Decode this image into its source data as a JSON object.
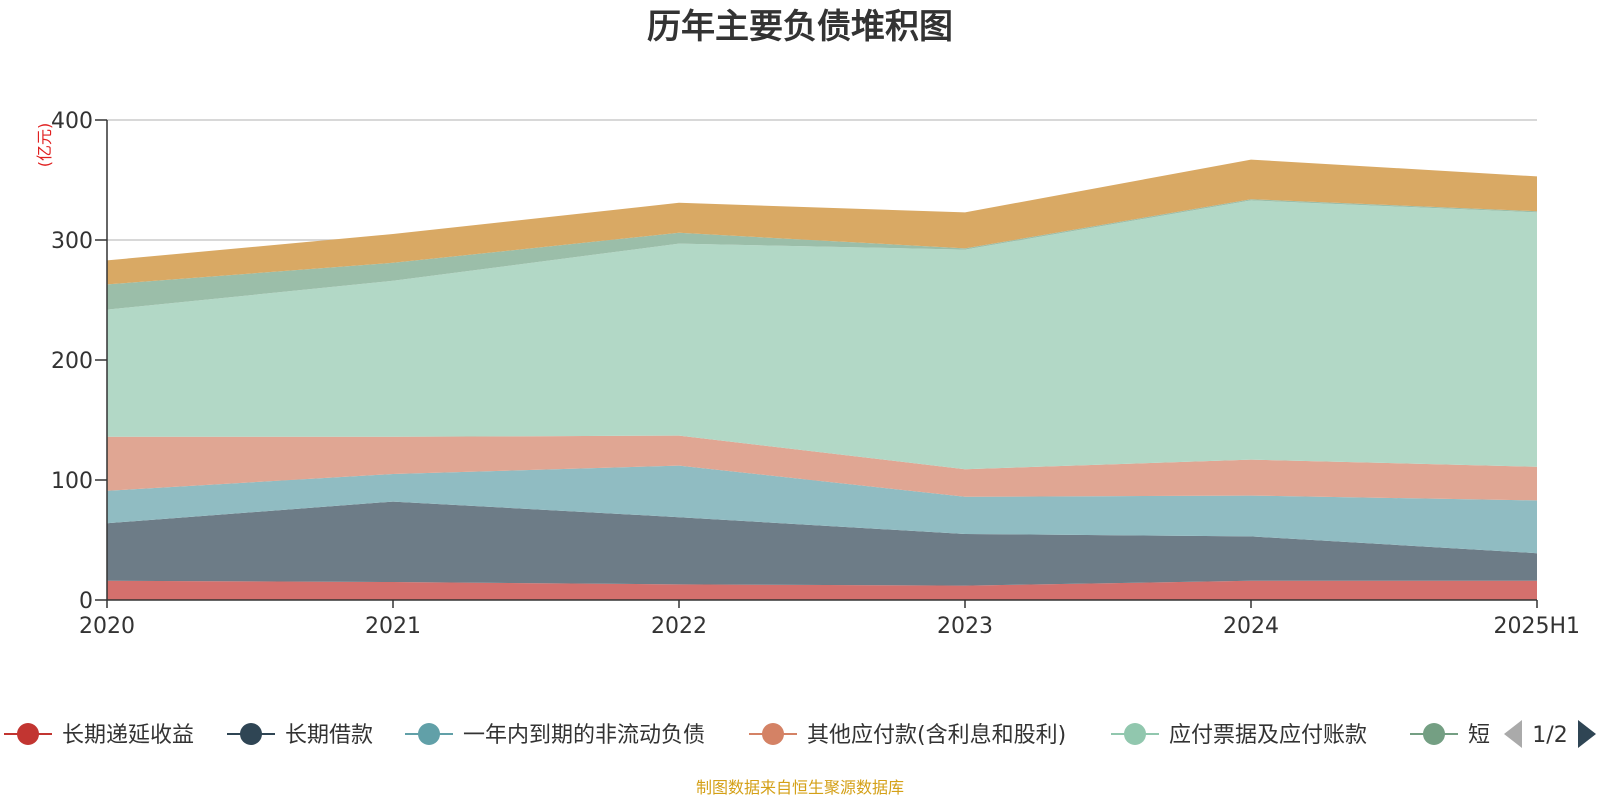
{
  "chart_data": {
    "type": "area",
    "stacked": true,
    "title": "历年主要负债堆积图",
    "unit": "(亿元)",
    "categories": [
      "2020",
      "2021",
      "2022",
      "2023",
      "2024",
      "2025H1"
    ],
    "ylim": [
      0,
      400
    ],
    "yticks": [
      "0",
      "100",
      "200",
      "300",
      "400"
    ],
    "grid": true,
    "series": [
      {
        "name": "长期递延收益",
        "color": "#c23531",
        "fill": "#d4706d",
        "values": [
          16,
          15,
          13,
          12,
          16,
          16
        ]
      },
      {
        "name": "长期借款",
        "color": "#2f4554",
        "fill": "#6d7c87",
        "values": [
          48,
          67,
          56,
          43,
          37,
          23
        ]
      },
      {
        "name": "一年内到期的非流动负债",
        "color": "#61a0a8",
        "fill": "#90bcc2",
        "values": [
          27,
          23,
          43,
          31,
          34,
          44
        ]
      },
      {
        "name": "其他应付款(含利息和股利)",
        "color": "#d48265",
        "fill": "#e0a693",
        "values": [
          45,
          31,
          25,
          23,
          30,
          28
        ]
      },
      {
        "name": "应付票据及应付账款",
        "color": "#91c7ae",
        "fill": "#b2d8c6",
        "values": [
          106,
          130,
          160,
          183,
          216,
          212
        ]
      },
      {
        "name": "短期借款",
        "color": "#749f83",
        "fill": "#9bbea9",
        "values": [
          21,
          15,
          9,
          1,
          1,
          1
        ]
      },
      {
        "name": "",
        "color": "#ca8622",
        "fill": "#d9a964",
        "values": [
          20,
          24,
          25,
          30,
          33,
          29
        ]
      }
    ]
  },
  "legend": {
    "items": [
      {
        "label": "长期递延收益",
        "color": "#c23531"
      },
      {
        "label": "长期借款",
        "color": "#2f4554"
      },
      {
        "label": "一年内到期的非流动负债",
        "color": "#61a0a8"
      },
      {
        "label": "其他应付款(含利息和股利)",
        "color": "#d48265"
      },
      {
        "label": "应付票据及应付账款",
        "color": "#91c7ae"
      },
      {
        "label": "短",
        "color": "#749f83"
      }
    ],
    "pager": "1/2"
  },
  "source": "制图数据来自恒生聚源数据库"
}
